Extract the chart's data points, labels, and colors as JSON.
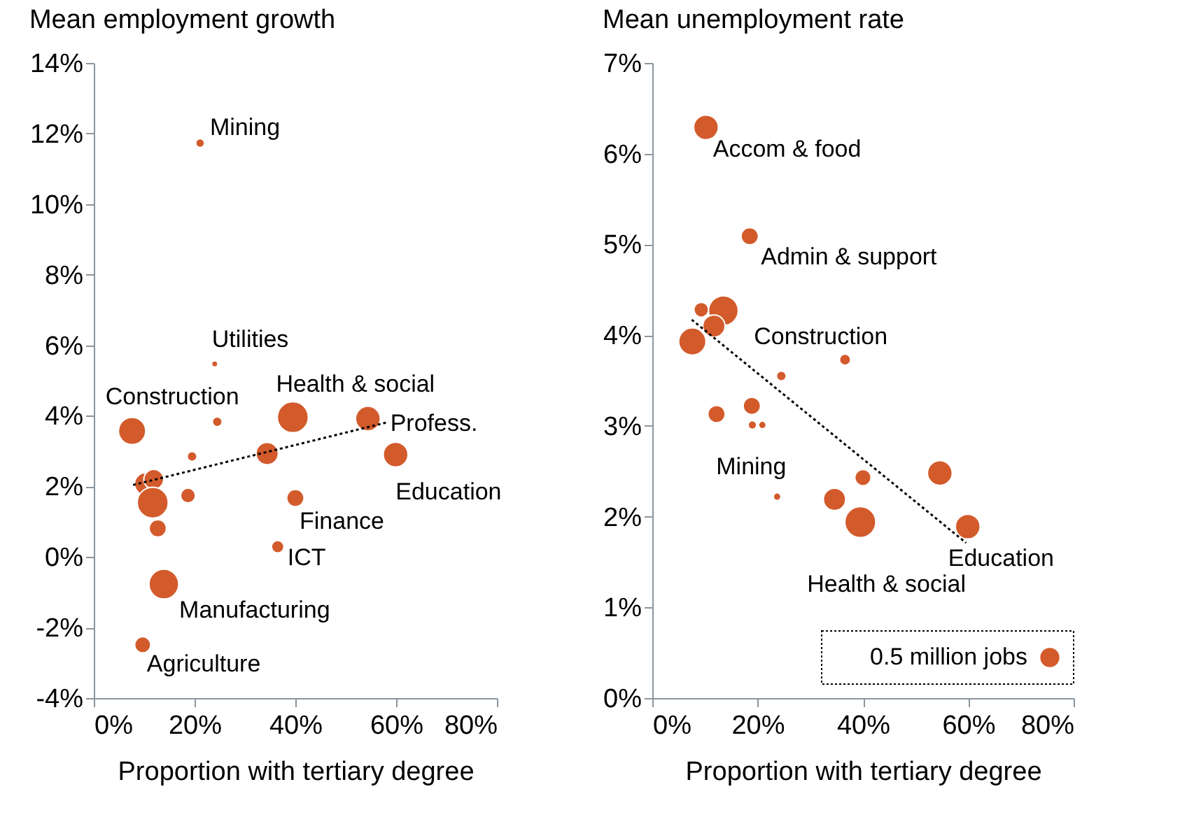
{
  "chart_data": [
    {
      "type": "bubble",
      "title": "Mean employment growth",
      "xlabel": "Proportion with tertiary degree",
      "xlim": [
        0,
        80
      ],
      "ylim": [
        -4,
        14
      ],
      "xticks": [
        {
          "value": 0,
          "label": "0%"
        },
        {
          "value": 20,
          "label": "20%"
        },
        {
          "value": 40,
          "label": "40%"
        },
        {
          "value": 60,
          "label": "60%"
        },
        {
          "value": 80,
          "label": "80%"
        }
      ],
      "yticks": [
        {
          "value": -4,
          "label": "-4%"
        },
        {
          "value": -2,
          "label": "-2%"
        },
        {
          "value": 0,
          "label": "0%"
        },
        {
          "value": 2,
          "label": "2%"
        },
        {
          "value": 4,
          "label": "4%"
        },
        {
          "value": 6,
          "label": "6%"
        },
        {
          "value": 8,
          "label": "8%"
        },
        {
          "value": 10,
          "label": "10%"
        },
        {
          "value": 12,
          "label": "12%"
        },
        {
          "value": 14,
          "label": "14%"
        }
      ],
      "grid": false,
      "series": [
        {
          "color": "#d35a2b",
          "x": [
            21.1,
            24.0,
            7.6,
            24.5,
            39.5,
            54.4,
            59.9,
            34.4,
            19.5,
            10.3,
            11.9,
            11.7,
            18.7,
            12.7,
            40.0,
            36.5,
            13.9,
            9.7
          ],
          "values": [
            11.73,
            5.47,
            3.57,
            3.83,
            3.96,
            3.92,
            2.9,
            2.93,
            2.85,
            2.07,
            2.2,
            1.54,
            1.74,
            0.81,
            1.67,
            0.29,
            -0.77,
            -2.49
          ],
          "sizes": [
            0.08,
            0.04,
            0.77,
            0.1,
            1,
            0.64,
            0.64,
            0.52,
            0.1,
            0.52,
            0.41,
            1,
            0.23,
            0.31,
            0.31,
            0.16,
            0.92,
            0.27
          ]
        },
        {
          "type": "line",
          "color": "#000000",
          "line_style": "dotted",
          "x": [
            7.8,
            58.4
          ],
          "values": [
            2.04,
            3.82
          ]
        }
      ],
      "annotations": [
        {
          "text": "Mining",
          "x": 21.1,
          "y": 11.73
        },
        {
          "text": "Utilities",
          "x": 24.0,
          "y": 5.47
        },
        {
          "text": "Construction",
          "x": 7.6,
          "y": 3.57
        },
        {
          "text": "Health & social",
          "x": 39.5,
          "y": 3.96
        },
        {
          "text": "Profess.",
          "x": 54.4,
          "y": 3.92
        },
        {
          "text": "Education",
          "x": 59.9,
          "y": 2.9
        },
        {
          "text": "Finance",
          "x": 40.0,
          "y": 1.67
        },
        {
          "text": "ICT",
          "x": 36.5,
          "y": 0.29
        },
        {
          "text": "Manufacturing",
          "x": 13.9,
          "y": -0.77
        },
        {
          "text": "Agriculture",
          "x": 9.7,
          "y": -2.49
        }
      ]
    },
    {
      "type": "bubble",
      "title": "Mean unemployment rate",
      "xlabel": "Proportion with tertiary degree",
      "xlim": [
        0,
        80
      ],
      "ylim": [
        0,
        7
      ],
      "xticks": [
        {
          "value": 0,
          "label": "0%"
        },
        {
          "value": 20,
          "label": "20%"
        },
        {
          "value": 40,
          "label": "40%"
        },
        {
          "value": 60,
          "label": "60%"
        },
        {
          "value": 80,
          "label": "80%"
        }
      ],
      "yticks": [
        {
          "value": 0,
          "label": "0%"
        },
        {
          "value": 1,
          "label": "1%"
        },
        {
          "value": 2,
          "label": "2%"
        },
        {
          "value": 3,
          "label": "3%"
        },
        {
          "value": 4,
          "label": "4%"
        },
        {
          "value": 5,
          "label": "5%"
        },
        {
          "value": 6,
          "label": "6%"
        },
        {
          "value": 7,
          "label": "7%"
        }
      ],
      "grid": false,
      "size_legend": [
        {
          "value": 0.5,
          "label": "0.5 million jobs"
        }
      ],
      "series": [
        {
          "color": "#d35a2b",
          "x": [
            10.2,
            18.5,
            9.3,
            13.5,
            7.6,
            11.7,
            36.6,
            24.5,
            18.9,
            12.2,
            19.0,
            20.9,
            23.7,
            40.0,
            34.6,
            39.5,
            54.6,
            59.9
          ],
          "values": [
            6.29,
            5.09,
            4.28,
            4.27,
            3.93,
            4.1,
            3.73,
            3.55,
            3.22,
            3.13,
            3.01,
            3.01,
            2.22,
            2.43,
            2.19,
            1.94,
            2.48,
            1.89
          ],
          "sizes": [
            0.84,
            0.41,
            0.3,
            1.21,
            1.02,
            0.68,
            0.17,
            0.13,
            0.41,
            0.41,
            0.1,
            0.08,
            0.08,
            0.36,
            0.68,
            1.32,
            0.84,
            0.84
          ]
        },
        {
          "type": "line",
          "color": "#000000",
          "line_style": "dotted",
          "x": [
            7.5,
            59.6
          ],
          "values": [
            4.17,
            1.71
          ]
        }
      ],
      "annotations": [
        {
          "text": "Accom & food",
          "x": 10.2,
          "y": 6.29
        },
        {
          "text": "Admin & support",
          "x": 18.5,
          "y": 5.09
        },
        {
          "text": "Construction",
          "x": 7.6,
          "y": 3.93
        },
        {
          "text": "Mining",
          "x": 20.9,
          "y": 3.01
        },
        {
          "text": "Health & social",
          "x": 39.5,
          "y": 1.94
        },
        {
          "text": "Education",
          "x": 59.9,
          "y": 1.89
        }
      ]
    }
  ]
}
